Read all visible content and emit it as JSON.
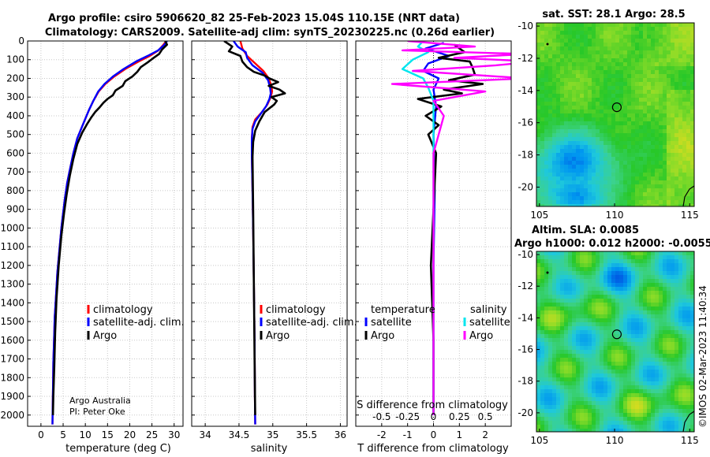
{
  "header": {
    "title_line1": "Argo profile: csiro 5906620_82 25-Feb-2023 15.04S 110.15E (NRT data)",
    "title_line2": "Climatology: CARS2009. Satellite-adj clim: synTS_20230225.nc (0.26d earlier)"
  },
  "credit": {
    "line1": "Argo Australia",
    "line2": "PI: Peter Oke"
  },
  "timestamp": "©IMOS 02-Mar-2023 11:40:34",
  "colors": {
    "climatology": "#ff0000",
    "satellite": "#0000ff",
    "argo": "#000000",
    "sal_satellite": "#00e5ee",
    "sal_argo": "#ff00ff"
  },
  "chart_data": [
    {
      "type": "line",
      "name": "temperature profile",
      "xlabel": "temperature (deg C)",
      "ylabel": "",
      "xlim": [
        -3,
        32
      ],
      "ylim": [
        2060,
        0
      ],
      "xticks": [
        0,
        5,
        10,
        15,
        20,
        25,
        30
      ],
      "yticks": [
        0,
        100,
        200,
        300,
        400,
        500,
        600,
        700,
        800,
        900,
        1000,
        1100,
        1200,
        1300,
        1400,
        1500,
        1600,
        1700,
        1800,
        1900,
        2000
      ],
      "legend": [
        "climatology",
        "satellite-adj. clim.",
        "Argo"
      ],
      "series": [
        {
          "name": "climatology",
          "color": "#ff0000",
          "x": [
            28.2,
            27.6,
            26.5,
            24.5,
            22.0,
            19.0,
            16.5,
            14.5,
            13.0,
            11.8,
            10.8,
            9.4,
            8.2,
            7.3,
            6.6,
            5.9,
            5.4,
            5.0,
            4.6,
            4.3,
            4.0,
            3.7,
            3.5,
            3.3,
            3.1,
            3.0,
            2.9,
            2.8,
            2.75,
            2.7,
            2.65,
            2.6
          ],
          "depth": [
            0,
            20,
            50,
            80,
            110,
            150,
            190,
            230,
            270,
            320,
            370,
            450,
            520,
            600,
            680,
            760,
            840,
            920,
            1000,
            1080,
            1160,
            1240,
            1320,
            1400,
            1480,
            1560,
            1640,
            1720,
            1800,
            1880,
            1960,
            2050
          ]
        },
        {
          "name": "satellite-adj. clim.",
          "color": "#0000ff",
          "x": [
            28.4,
            27.8,
            26.4,
            24.0,
            21.4,
            18.6,
            16.2,
            14.3,
            12.9,
            11.8,
            10.8,
            9.4,
            8.2,
            7.3,
            6.6,
            5.9,
            5.4,
            5.0,
            4.6,
            4.3,
            4.0,
            3.7,
            3.5,
            3.3,
            3.1,
            3.0,
            2.9,
            2.8,
            2.75,
            2.7,
            2.65,
            2.6
          ],
          "depth": [
            0,
            20,
            50,
            80,
            110,
            150,
            190,
            230,
            270,
            320,
            370,
            450,
            520,
            600,
            680,
            760,
            840,
            920,
            1000,
            1080,
            1160,
            1240,
            1320,
            1400,
            1480,
            1560,
            1640,
            1720,
            1800,
            1880,
            1960,
            2050
          ]
        },
        {
          "name": "Argo",
          "color": "#000000",
          "x": [
            28.0,
            28.4,
            27.3,
            26.6,
            25.1,
            24.0,
            22.5,
            21.7,
            20.6,
            19.0,
            18.4,
            16.8,
            16.2,
            15.0,
            14.1,
            13.2,
            12.2,
            11.3,
            10.5,
            9.3,
            8.2,
            7.3,
            6.5,
            5.8,
            5.2,
            4.6,
            4.0,
            3.5,
            3.2,
            3.0,
            2.8,
            2.7
          ],
          "depth": [
            0,
            20,
            45,
            70,
            95,
            115,
            140,
            165,
            190,
            215,
            240,
            265,
            290,
            310,
            330,
            355,
            380,
            410,
            440,
            490,
            550,
            630,
            720,
            820,
            920,
            1040,
            1200,
            1380,
            1560,
            1740,
            1900,
            2000
          ]
        }
      ]
    },
    {
      "type": "line",
      "name": "salinity profile",
      "xlabel": "salinity",
      "xlim": [
        33.8,
        36.1
      ],
      "ylim": [
        2060,
        0
      ],
      "xticks": [
        34,
        34.5,
        35,
        35.5,
        36
      ],
      "legend": [
        "climatology",
        "satellite-adj. clim.",
        "Argo"
      ],
      "series": [
        {
          "name": "climatology",
          "color": "#ff0000",
          "x": [
            34.52,
            34.55,
            34.62,
            34.74,
            34.86,
            34.94,
            34.98,
            34.99,
            34.97,
            34.92,
            34.84,
            34.74,
            34.7,
            34.69,
            34.69,
            34.7,
            34.71,
            34.72,
            34.73,
            34.735,
            34.74
          ],
          "depth": [
            0,
            40,
            80,
            120,
            160,
            200,
            240,
            270,
            300,
            340,
            380,
            420,
            460,
            520,
            600,
            800,
            1000,
            1300,
            1600,
            1900,
            2050
          ]
        },
        {
          "name": "satellite-adj. clim.",
          "color": "#0000ff",
          "x": [
            34.42,
            34.48,
            34.6,
            34.62,
            34.7,
            34.85,
            34.93,
            34.96,
            34.97,
            34.95,
            34.9,
            34.82,
            34.74,
            34.7,
            34.69,
            34.69,
            34.7,
            34.71,
            34.72,
            34.73,
            34.735,
            34.74
          ],
          "depth": [
            0,
            30,
            60,
            90,
            130,
            170,
            210,
            250,
            280,
            310,
            350,
            390,
            430,
            470,
            530,
            610,
            800,
            1000,
            1300,
            1600,
            1900,
            2050
          ]
        },
        {
          "name": "Argo",
          "color": "#000000",
          "x": [
            34.28,
            34.4,
            34.35,
            34.52,
            34.55,
            34.62,
            34.72,
            34.88,
            34.95,
            35.08,
            34.94,
            35.1,
            35.18,
            34.98,
            35.06,
            35.02,
            34.88,
            34.8,
            34.74,
            34.71,
            34.7,
            34.71,
            34.72,
            34.73,
            34.74
          ],
          "depth": [
            0,
            30,
            55,
            80,
            110,
            140,
            165,
            185,
            200,
            220,
            240,
            260,
            280,
            300,
            320,
            340,
            380,
            430,
            480,
            540,
            620,
            900,
            1300,
            1700,
            2000
          ]
        }
      ]
    },
    {
      "type": "line",
      "name": "difference from climatology",
      "xlabel": "T difference from climatology",
      "xlabel_top": "S difference from climatology",
      "xlim": [
        -3,
        3
      ],
      "ylim": [
        2060,
        0
      ],
      "xticks": [
        -2,
        -1,
        0,
        1,
        2
      ],
      "top_ticks": [
        "-0.5",
        "-0.25",
        "0",
        "0.25",
        "0.5"
      ],
      "legend_temperature": "temperature",
      "legend_salinity": "salinity",
      "legend_satellite": "satellite",
      "legend_argo": "Argo",
      "series": [
        {
          "name": "T satellite",
          "color": "#0000ff",
          "x": [
            0.4,
            -0.3,
            0.6,
            -0.2,
            -0.4,
            0.2,
            0.0,
            0.1,
            0.0,
            0.05,
            0.0,
            0.0,
            0.0
          ],
          "depth": [
            10,
            40,
            80,
            120,
            160,
            200,
            260,
            350,
            500,
            800,
            1200,
            1600,
            2000
          ]
        },
        {
          "name": "T Argo",
          "color": "#000000",
          "x": [
            0.8,
            1.2,
            0.2,
            1.4,
            1.5,
            1.6,
            0.6,
            1.9,
            0.4,
            1.1,
            -0.6,
            0.3,
            -0.3,
            0.2,
            -0.2,
            0.1,
            0.0,
            -0.1,
            0.0,
            0.0
          ],
          "depth": [
            20,
            60,
            90,
            110,
            140,
            180,
            210,
            230,
            260,
            280,
            310,
            350,
            400,
            450,
            500,
            600,
            900,
            1200,
            1600,
            2000
          ]
        },
        {
          "name": "S satellite",
          "color": "#00e5ee",
          "x": [
            -0.1,
            -0.15,
            -0.05,
            -0.2,
            -0.3,
            -0.1,
            -0.05,
            0.0,
            0.0,
            0.0,
            0.0
          ],
          "depth": [
            0,
            30,
            60,
            100,
            150,
            200,
            250,
            320,
            500,
            1000,
            2000
          ]
        },
        {
          "name": "S Argo",
          "color": "#ff00ff",
          "x": [
            -0.25,
            0.4,
            -0.3,
            0.9,
            0.2,
            1.0,
            0.6,
            -0.2,
            0.9,
            -0.4,
            0.5,
            0.0,
            0.1,
            0.0,
            0.0,
            0.0
          ],
          "depth": [
            0,
            30,
            50,
            70,
            90,
            110,
            130,
            160,
            200,
            230,
            270,
            320,
            400,
            600,
            1200,
            2000
          ]
        }
      ]
    },
    {
      "type": "heatmap",
      "name": "satellite SST map",
      "title": "sat. SST: 28.1 Argo: 28.5",
      "xlim": [
        104.8,
        115.3
      ],
      "ylim": [
        -21.2,
        -9.8
      ],
      "xticks": [
        105,
        110,
        115
      ],
      "yticks": [
        -10,
        -12,
        -14,
        -16,
        -18,
        -20
      ],
      "argo_position": [
        110.15,
        -15.04
      ]
    },
    {
      "type": "heatmap",
      "name": "altimetry SLA map",
      "title_line1": "Altim. SLA: 0.0085",
      "title_line2": "Argo h1000: 0.012 h2000: -0.0055",
      "xlim": [
        104.8,
        115.3
      ],
      "ylim": [
        -21.2,
        -9.8
      ],
      "xticks": [
        105,
        110,
        115
      ],
      "yticks": [
        -10,
        -12,
        -14,
        -16,
        -18,
        -20
      ],
      "argo_position": [
        110.15,
        -15.04
      ]
    }
  ]
}
